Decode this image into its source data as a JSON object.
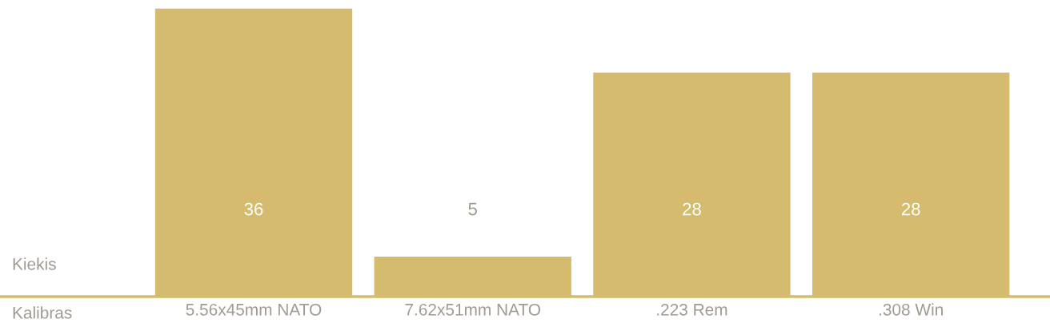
{
  "chart_data": {
    "type": "bar",
    "xlabel": "Kalibras",
    "ylabel": "Kiekis",
    "categories": [
      "5.56x45mm NATO",
      "7.62x51mm NATO",
      ".223 Rem",
      ".308 Win"
    ],
    "values": [
      36,
      5,
      28,
      28
    ],
    "color": "#d4bb6e",
    "data_labels": true,
    "grid": false,
    "legend": false
  }
}
